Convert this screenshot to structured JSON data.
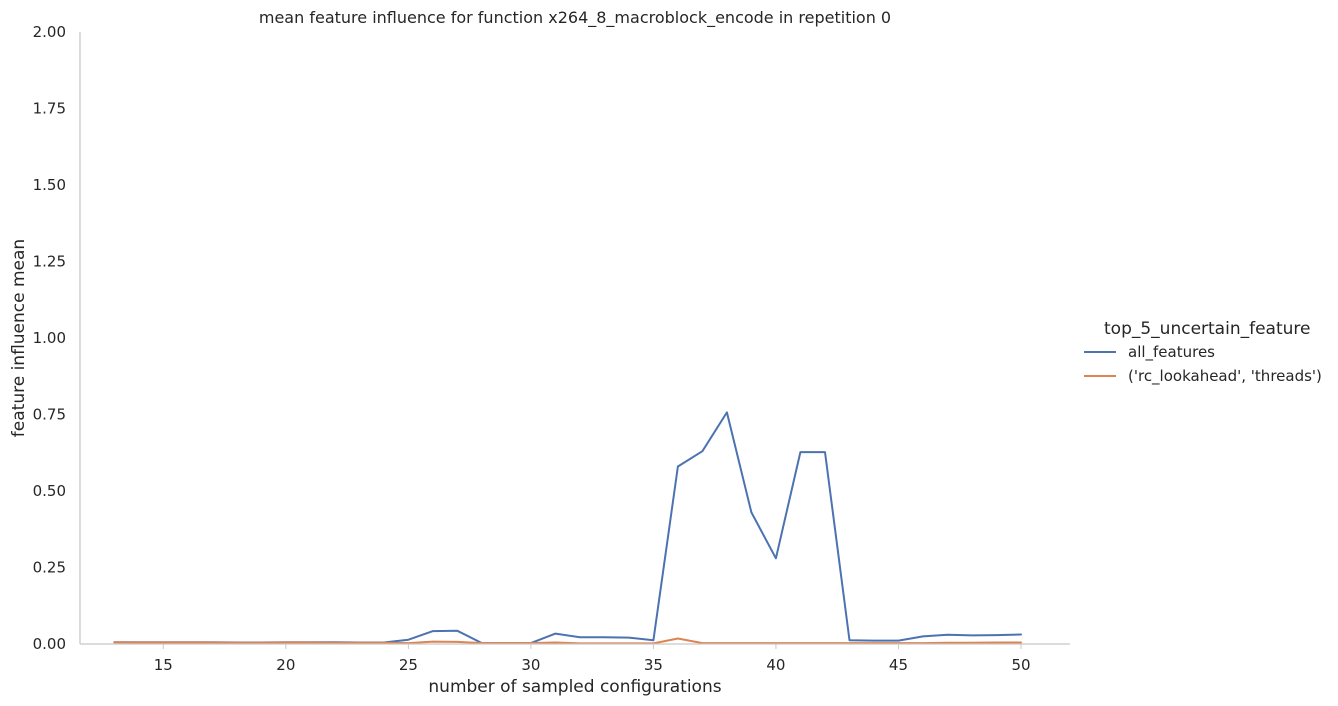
{
  "chart_data": {
    "type": "line",
    "title": "mean feature influence for function x264_8_macroblock_encode in repetition 0",
    "xlabel": "number of sampled configurations",
    "ylabel": "feature influence mean",
    "xlim": [
      11.6,
      52
    ],
    "ylim": [
      0,
      2
    ],
    "xticks": [
      15,
      20,
      25,
      30,
      35,
      40,
      45,
      50
    ],
    "xtick_labels": [
      "15",
      "20",
      "25",
      "30",
      "35",
      "40",
      "45",
      "50"
    ],
    "yticks": [
      0,
      0.25,
      0.5,
      0.75,
      1.0,
      1.25,
      1.5,
      1.75,
      2.0
    ],
    "ytick_labels": [
      "0.00",
      "0.25",
      "0.50",
      "0.75",
      "1.00",
      "1.25",
      "1.50",
      "1.75",
      "2.00"
    ],
    "grid": false,
    "legend": {
      "title": "top_5_uncertain_feature",
      "placement": "right-center"
    },
    "x": [
      13,
      14,
      15,
      16,
      17,
      18,
      19,
      20,
      21,
      22,
      23,
      24,
      25,
      26,
      27,
      28,
      29,
      30,
      31,
      32,
      33,
      34,
      35,
      36,
      37,
      38,
      39,
      40,
      41,
      42,
      43,
      44,
      45,
      46,
      47,
      48,
      49,
      50
    ],
    "series": [
      {
        "name": "all_features",
        "color": "#4c72b0",
        "values": [
          0.006,
          0.006,
          0.006,
          0.006,
          0.006,
          0.005,
          0.005,
          0.006,
          0.006,
          0.006,
          0.005,
          0.005,
          0.014,
          0.042,
          0.043,
          0.003,
          0.003,
          0.003,
          0.034,
          0.022,
          0.022,
          0.021,
          0.012,
          0.58,
          0.63,
          0.757,
          0.43,
          0.28,
          0.627,
          0.627,
          0.012,
          0.011,
          0.011,
          0.025,
          0.03,
          0.028,
          0.029,
          0.031
        ]
      },
      {
        "name": "('rc_lookahead', 'threads')",
        "color": "#dd8452",
        "values": [
          0.006,
          0.005,
          0.005,
          0.005,
          0.005,
          0.004,
          0.004,
          0.005,
          0.005,
          0.004,
          0.004,
          0.004,
          0.003,
          0.008,
          0.007,
          0.003,
          0.003,
          0.003,
          0.005,
          0.002,
          0.002,
          0.002,
          0.002,
          0.018,
          0.003,
          0.003,
          0.003,
          0.003,
          0.003,
          0.003,
          0.003,
          0.003,
          0.003,
          0.003,
          0.004,
          0.004,
          0.005,
          0.005
        ]
      }
    ]
  }
}
